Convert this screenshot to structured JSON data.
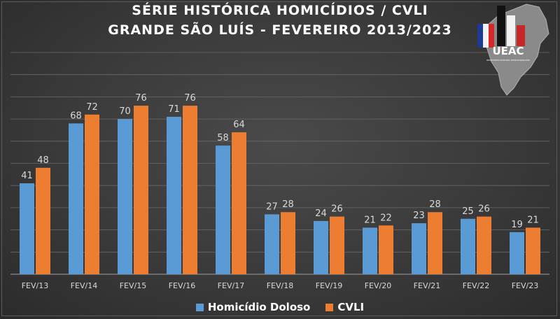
{
  "title": {
    "line1": "SÉRIE HISTÓRICA HOMICÍDIOS / CVLI",
    "line2": "GRANDE SÃO LUÍS - FEVEREIRO 2013/2023"
  },
  "logo": {
    "text": "UEAC",
    "subtext": "UNIDADE DE ESTATÍSTICA E ANÁLISE CRIMINAL · SECRETARIA DE SEGURANÇA PÚBLICA"
  },
  "colors": {
    "series1": "#5b9bd5",
    "series2": "#ed7d31",
    "gridline": "#6a6a6a",
    "text": "#d9d9d9"
  },
  "chart_data": {
    "type": "bar",
    "title": "SÉRIE HISTÓRICA HOMICÍDIOS / CVLI GRANDE SÃO LUÍS - FEVEREIRO 2013/2023",
    "categories": [
      "FEV/13",
      "FEV/14",
      "FEV/15",
      "FEV/16",
      "FEV/17",
      "FEV/18",
      "FEV/19",
      "FEV/20",
      "FEV/21",
      "FEV/22",
      "FEV/23"
    ],
    "series": [
      {
        "name": "Homicídio Doloso",
        "values": [
          41,
          68,
          70,
          71,
          58,
          27,
          24,
          21,
          23,
          25,
          19
        ]
      },
      {
        "name": "CVLI",
        "values": [
          48,
          72,
          76,
          76,
          64,
          28,
          26,
          22,
          28,
          26,
          21
        ]
      }
    ],
    "ylim": [
      0,
      100
    ],
    "grid": true,
    "legend_position": "bottom"
  }
}
